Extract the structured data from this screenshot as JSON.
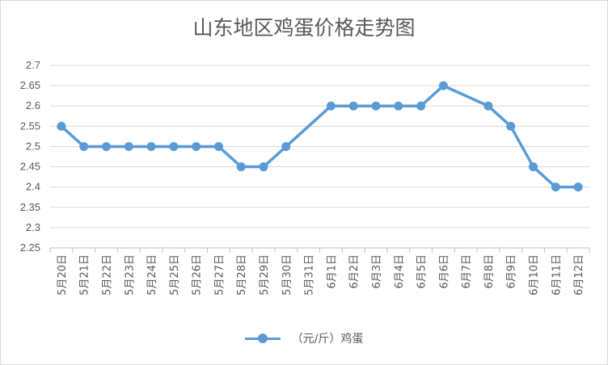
{
  "chart_data": {
    "type": "line",
    "title": "山东地区鸡蛋价格走势图",
    "categories": [
      "5月20日",
      "5月21日",
      "5月22日",
      "5月23日",
      "5月24日",
      "5月25日",
      "5月26日",
      "5月27日",
      "5月28日",
      "5月29日",
      "5月30日",
      "5月31日",
      "6月1日",
      "6月2日",
      "6月3日",
      "6月4日",
      "6月5日",
      "6月6日",
      "6月7日",
      "6月8日",
      "6月9日",
      "6月10日",
      "6月11日",
      "6月12日"
    ],
    "series": [
      {
        "name": "（元/斤）鸡蛋",
        "color": "#5b9bd5",
        "values": [
          2.55,
          2.5,
          2.5,
          2.5,
          2.5,
          2.5,
          2.5,
          2.5,
          2.45,
          2.45,
          2.5,
          null,
          2.6,
          2.6,
          2.6,
          2.6,
          2.6,
          2.65,
          null,
          2.6,
          2.55,
          2.45,
          2.4,
          2.4
        ]
      }
    ],
    "ylim": [
      2.25,
      2.7
    ],
    "yticks": [
      "2.25",
      "2.3",
      "2.35",
      "2.4",
      "2.45",
      "2.5",
      "2.55",
      "2.6",
      "2.65",
      "2.7"
    ],
    "grid": "horizontal",
    "legend": "bottom",
    "connect_gaps": true
  }
}
